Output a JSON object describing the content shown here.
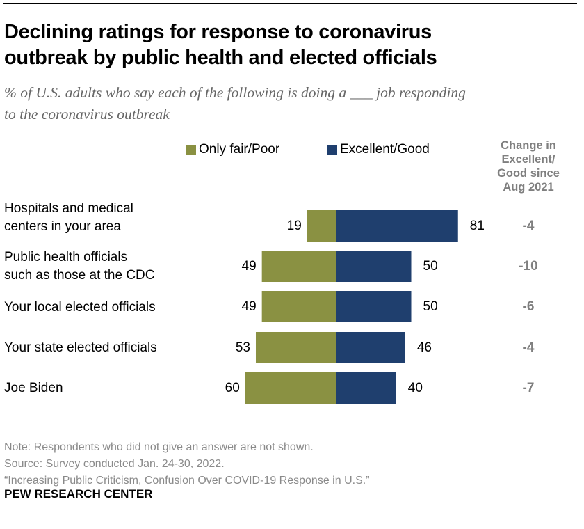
{
  "header": {
    "title_line1": "Declining ratings for response to coronavirus",
    "title_line2": "outbreak by public health and elected officials",
    "subtitle_line1": "% of U.S. adults who say each of the following is doing a ___ job responding",
    "subtitle_line2": "to the coronavirus outbreak"
  },
  "legend": [
    {
      "label": "Only fair/Poor",
      "color": "#8a9142"
    },
    {
      "label": "Excellent/Good",
      "color": "#1f3f6e"
    }
  ],
  "change_header": {
    "line1": "Change in",
    "line2": "Excellent/",
    "line3": "Good since",
    "line4": "Aug 2021"
  },
  "rows": [
    {
      "label_line1": "Hospitals and medical",
      "label_line2": "centers in your area",
      "poor": "19",
      "good": "81",
      "change": "-4"
    },
    {
      "label_line1": "Public health officials",
      "label_line2": "such as those at the CDC",
      "poor": "49",
      "good": "50",
      "change": "-10"
    },
    {
      "label_line1": "Your local elected officials",
      "label_line2": "",
      "poor": "49",
      "good": "50",
      "change": "-6"
    },
    {
      "label_line1": "Your state elected officials",
      "label_line2": "",
      "poor": "53",
      "good": "46",
      "change": "-4"
    },
    {
      "label_line1": "Joe Biden",
      "label_line2": "",
      "poor": "60",
      "good": "40",
      "change": "-7"
    }
  ],
  "footer": {
    "note": "Note: Respondents who did not give an answer are not shown.",
    "source": "Source: Survey conducted Jan. 24-30, 2022.",
    "report": "“Increasing Public Criticism, Confusion Over COVID-19 Response in U.S.”",
    "brand": "PEW RESEARCH CENTER"
  },
  "chart_data": {
    "type": "bar",
    "orientation": "horizontal-diverging",
    "title": "Declining ratings for response to coronavirus outbreak by public health and elected officials",
    "subtitle": "% of U.S. adults who say each of the following is doing a ___ job responding to the coronavirus outbreak",
    "categories": [
      "Hospitals and medical centers in your area",
      "Public health officials such as those at the CDC",
      "Your local elected officials",
      "Your state elected officials",
      "Joe Biden"
    ],
    "series": [
      {
        "name": "Only fair/Poor",
        "color": "#8a9142",
        "values": [
          19,
          49,
          49,
          53,
          60
        ]
      },
      {
        "name": "Excellent/Good",
        "color": "#1f3f6e",
        "values": [
          81,
          50,
          50,
          46,
          40
        ]
      }
    ],
    "change_column": {
      "name": "Change in Excellent/Good since Aug 2021",
      "values": [
        -4,
        -10,
        -6,
        -4,
        -7
      ]
    },
    "xlabel": "",
    "ylabel": "",
    "legend": "top",
    "grid": false
  }
}
